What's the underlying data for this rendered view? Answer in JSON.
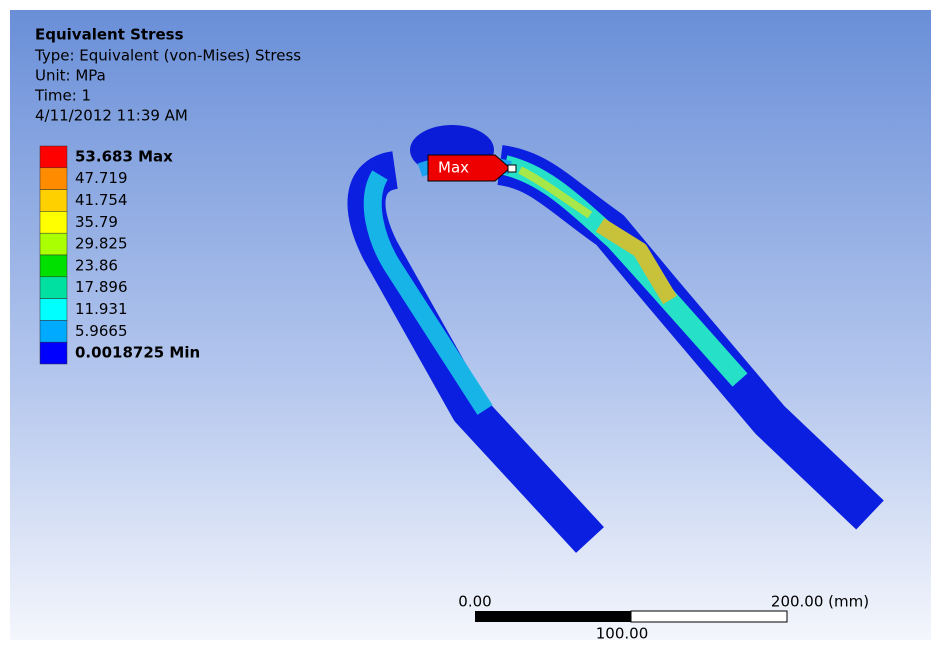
{
  "header": {
    "title": "Equivalent Stress",
    "type": "Type: Equivalent (von-Mises) Stress",
    "unit": "Unit: MPa",
    "time": "Time: 1",
    "date": "4/11/2012 11:39 AM"
  },
  "legend": {
    "entries": [
      {
        "label": "53.683 Max",
        "color": "#ff0000"
      },
      {
        "label": "47.719",
        "color": "#ff8c00"
      },
      {
        "label": "41.754",
        "color": "#ffd000"
      },
      {
        "label": "35.79",
        "color": "#ffff00"
      },
      {
        "label": "29.825",
        "color": "#aaff00"
      },
      {
        "label": "23.86",
        "color": "#00e000"
      },
      {
        "label": "17.896",
        "color": "#00e0a0"
      },
      {
        "label": "11.931",
        "color": "#00ffff"
      },
      {
        "label": "5.9665",
        "color": "#00aaff"
      },
      {
        "label": "0.0018725 Min",
        "color": "#0000ff"
      }
    ]
  },
  "probe": {
    "label": "Max"
  },
  "scale_bar": {
    "start": "0.00",
    "end": "200.00 (mm)",
    "middle": "100.00"
  }
}
